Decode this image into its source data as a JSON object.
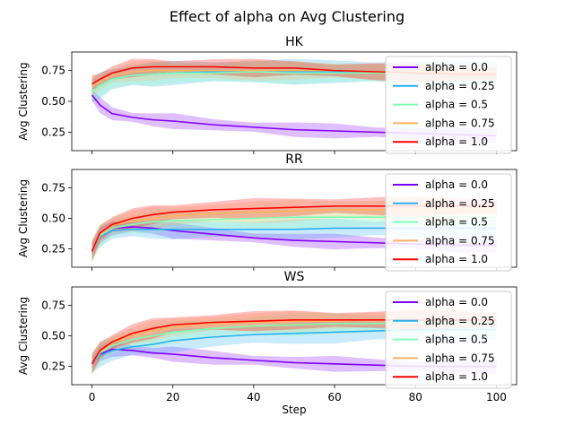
{
  "figure": {
    "suptitle": "Effect of alpha on  Avg Clustering"
  },
  "chart_data": [
    {
      "type": "line",
      "title": "HK",
      "xlabel": "",
      "ylabel": "Avg Clustering",
      "xlim": [
        -5,
        105
      ],
      "ylim": [
        0.1,
        0.9
      ],
      "xticks": [
        0,
        20,
        40,
        60,
        80,
        100
      ],
      "yticks": [
        0.25,
        0.5,
        0.75
      ],
      "show_xticklabels": false,
      "legend_position": "right",
      "x": [
        0,
        2,
        5,
        10,
        15,
        20,
        30,
        40,
        50,
        60,
        70,
        80,
        90,
        100
      ],
      "series": [
        {
          "name": "alpha = 0.0",
          "color": "#8000ff",
          "values": [
            0.55,
            0.47,
            0.4,
            0.37,
            0.35,
            0.34,
            0.31,
            0.29,
            0.27,
            0.26,
            0.25,
            0.24,
            0.23,
            0.22
          ],
          "band": 0.05
        },
        {
          "name": "alpha = 0.25",
          "color": "#2ab0f0",
          "values": [
            0.58,
            0.63,
            0.68,
            0.71,
            0.72,
            0.73,
            0.74,
            0.74,
            0.74,
            0.74,
            0.74,
            0.73,
            0.73,
            0.73
          ],
          "band": 0.09
        },
        {
          "name": "alpha = 0.5",
          "color": "#80ffb4",
          "values": [
            0.58,
            0.63,
            0.68,
            0.71,
            0.72,
            0.73,
            0.73,
            0.74,
            0.73,
            0.73,
            0.73,
            0.73,
            0.72,
            0.72
          ],
          "band": 0.08
        },
        {
          "name": "alpha = 0.75",
          "color": "#ffb360",
          "values": [
            0.62,
            0.66,
            0.71,
            0.74,
            0.75,
            0.75,
            0.75,
            0.75,
            0.75,
            0.75,
            0.74,
            0.74,
            0.73,
            0.73
          ],
          "band": 0.07
        },
        {
          "name": "alpha = 1.0",
          "color": "#ff0000",
          "values": [
            0.64,
            0.68,
            0.73,
            0.77,
            0.78,
            0.78,
            0.78,
            0.77,
            0.77,
            0.75,
            0.74,
            0.73,
            0.72,
            0.72
          ],
          "band": 0.06
        }
      ]
    },
    {
      "type": "line",
      "title": "RR",
      "xlabel": "",
      "ylabel": "Avg Clustering",
      "xlim": [
        -5,
        105
      ],
      "ylim": [
        0.1,
        0.9
      ],
      "xticks": [
        0,
        20,
        40,
        60,
        80,
        100
      ],
      "yticks": [
        0.25,
        0.5,
        0.75
      ],
      "show_xticklabels": false,
      "legend_position": "right",
      "x": [
        0,
        2,
        5,
        10,
        15,
        20,
        30,
        40,
        50,
        60,
        70,
        80,
        90,
        100
      ],
      "series": [
        {
          "name": "alpha = 0.0",
          "color": "#8000ff",
          "values": [
            0.23,
            0.36,
            0.42,
            0.43,
            0.42,
            0.4,
            0.37,
            0.34,
            0.32,
            0.31,
            0.3,
            0.29,
            0.28,
            0.28
          ],
          "band": 0.05
        },
        {
          "name": "alpha = 0.25",
          "color": "#2ab0f0",
          "values": [
            0.23,
            0.35,
            0.4,
            0.41,
            0.41,
            0.41,
            0.41,
            0.41,
            0.41,
            0.42,
            0.42,
            0.42,
            0.42,
            0.42
          ],
          "band": 0.07
        },
        {
          "name": "alpha = 0.5",
          "color": "#80ffb4",
          "values": [
            0.23,
            0.36,
            0.42,
            0.45,
            0.47,
            0.48,
            0.49,
            0.5,
            0.51,
            0.51,
            0.51,
            0.51,
            0.51,
            0.51
          ],
          "band": 0.08
        },
        {
          "name": "alpha = 0.75",
          "color": "#ffb360",
          "values": [
            0.23,
            0.37,
            0.44,
            0.48,
            0.5,
            0.52,
            0.54,
            0.55,
            0.56,
            0.57,
            0.57,
            0.57,
            0.57,
            0.57
          ],
          "band": 0.08
        },
        {
          "name": "alpha = 1.0",
          "color": "#ff0000",
          "values": [
            0.23,
            0.38,
            0.45,
            0.5,
            0.53,
            0.55,
            0.57,
            0.58,
            0.59,
            0.6,
            0.6,
            0.6,
            0.6,
            0.6
          ],
          "band": 0.07
        }
      ]
    },
    {
      "type": "line",
      "title": "WS",
      "xlabel": "Step",
      "ylabel": "Avg Clustering",
      "xlim": [
        -5,
        105
      ],
      "ylim": [
        0.1,
        0.9
      ],
      "xticks": [
        0,
        20,
        40,
        60,
        80,
        100
      ],
      "yticks": [
        0.25,
        0.5,
        0.75
      ],
      "show_xticklabels": true,
      "legend_position": "right",
      "x": [
        0,
        2,
        5,
        10,
        15,
        20,
        30,
        40,
        50,
        60,
        70,
        80,
        90,
        100
      ],
      "series": [
        {
          "name": "alpha = 0.0",
          "color": "#8000ff",
          "values": [
            0.27,
            0.35,
            0.39,
            0.38,
            0.36,
            0.35,
            0.32,
            0.3,
            0.28,
            0.27,
            0.26,
            0.25,
            0.25,
            0.25
          ],
          "band": 0.05
        },
        {
          "name": "alpha = 0.25",
          "color": "#2ab0f0",
          "values": [
            0.27,
            0.34,
            0.38,
            0.41,
            0.43,
            0.46,
            0.49,
            0.51,
            0.52,
            0.53,
            0.54,
            0.55,
            0.55,
            0.55
          ],
          "band": 0.08
        },
        {
          "name": "alpha = 0.5",
          "color": "#80ffb4",
          "values": [
            0.27,
            0.36,
            0.42,
            0.47,
            0.5,
            0.53,
            0.56,
            0.58,
            0.59,
            0.6,
            0.6,
            0.61,
            0.61,
            0.61
          ],
          "band": 0.08
        },
        {
          "name": "alpha = 0.75",
          "color": "#ffb360",
          "values": [
            0.27,
            0.37,
            0.44,
            0.5,
            0.54,
            0.57,
            0.6,
            0.61,
            0.62,
            0.62,
            0.63,
            0.63,
            0.63,
            0.63
          ],
          "band": 0.07
        },
        {
          "name": "alpha = 1.0",
          "color": "#ff0000",
          "values": [
            0.27,
            0.38,
            0.45,
            0.52,
            0.56,
            0.59,
            0.61,
            0.62,
            0.63,
            0.63,
            0.63,
            0.63,
            0.63,
            0.63
          ],
          "band": 0.07
        }
      ]
    }
  ]
}
